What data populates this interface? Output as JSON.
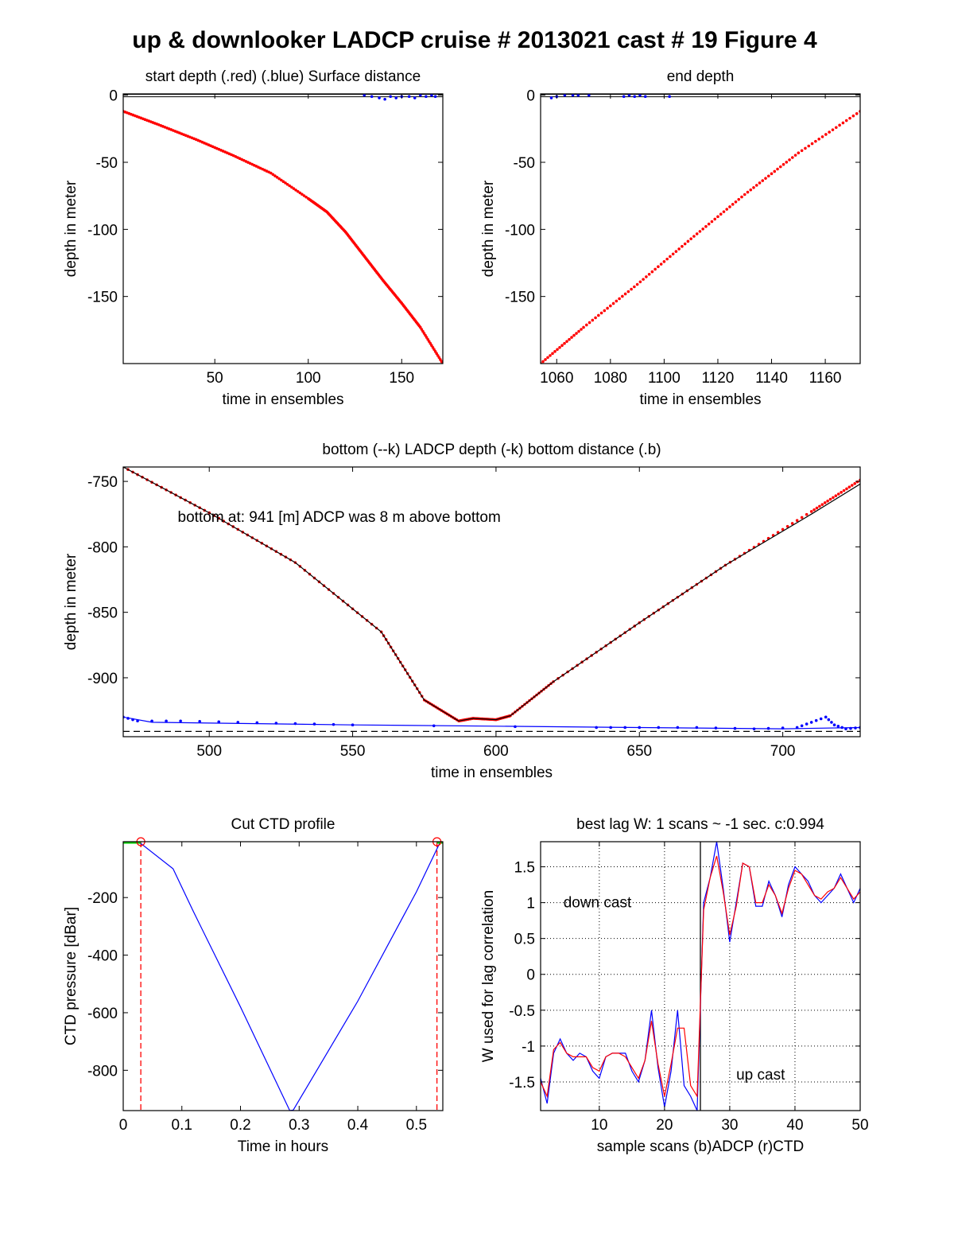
{
  "figure": {
    "title": "up & downlooker LADCP cruise # 2013021 cast # 19    Figure 4"
  },
  "colors": {
    "ladcp_depth_red": "#ff0000",
    "surface_bottom_blue": "#0000ff",
    "reference_black": "#000000",
    "surface_marker_green": "#00cc00"
  },
  "chart_data": [
    {
      "id": "start-depth",
      "type": "scatter",
      "title": "start depth (.red) (.blue) Surface distance",
      "xlabel": "time in ensembles",
      "ylabel": "depth in meter",
      "xlim": [
        1,
        172
      ],
      "ylim": [
        -200,
        1
      ],
      "xticks": [
        50,
        100,
        150
      ],
      "yticks": [
        0,
        -50,
        -100,
        -150
      ],
      "series": [
        {
          "color": "#ff0000",
          "style": "dots",
          "points": [
            [
              1,
              -12
            ],
            [
              20,
              -22
            ],
            [
              40,
              -33
            ],
            [
              60,
              -45
            ],
            [
              80,
              -58
            ],
            [
              100,
              -77
            ],
            [
              110,
              -87
            ],
            [
              120,
              -102
            ],
            [
              130,
              -120
            ],
            [
              140,
              -138
            ],
            [
              150,
              -155
            ],
            [
              160,
              -173
            ],
            [
              172,
              -200
            ]
          ]
        },
        {
          "color": "#0000ff",
          "style": "dots",
          "points": [
            [
              130,
              0
            ],
            [
              134,
              -1
            ],
            [
              138,
              -2
            ],
            [
              141,
              -3
            ],
            [
              144,
              -1
            ],
            [
              147,
              -2
            ],
            [
              150,
              -1
            ],
            [
              154,
              -1
            ],
            [
              157,
              -2
            ],
            [
              160,
              0
            ],
            [
              163,
              -1
            ],
            [
              166,
              0
            ],
            [
              168,
              -1
            ]
          ]
        }
      ],
      "reference_lines": [
        0
      ]
    },
    {
      "id": "end-depth",
      "type": "scatter",
      "title": "end depth",
      "xlabel": "time in ensembles",
      "ylabel": "depth in meter",
      "xlim": [
        1054,
        1173
      ],
      "ylim": [
        -200,
        1
      ],
      "xticks": [
        1060,
        1080,
        1100,
        1120,
        1140,
        1160
      ],
      "yticks": [
        0,
        -50,
        -100,
        -150
      ],
      "series": [
        {
          "color": "#ff0000",
          "style": "dots",
          "points": [
            [
              1054,
              -200
            ],
            [
              1070,
              -173
            ],
            [
              1090,
              -141
            ],
            [
              1110,
              -107
            ],
            [
              1130,
              -74
            ],
            [
              1150,
              -43
            ],
            [
              1173,
              -12
            ]
          ]
        },
        {
          "color": "#0000ff",
          "style": "dots",
          "points": [
            [
              1058,
              -2
            ],
            [
              1060,
              -1
            ],
            [
              1063,
              0
            ],
            [
              1066,
              0
            ],
            [
              1068,
              0
            ],
            [
              1072,
              0
            ],
            [
              1085,
              -1
            ],
            [
              1087,
              0
            ],
            [
              1089,
              -1
            ],
            [
              1091,
              0
            ],
            [
              1093,
              -1
            ],
            [
              1102,
              -1
            ]
          ]
        }
      ],
      "reference_lines": [
        0
      ]
    },
    {
      "id": "bottom",
      "type": "line",
      "title": "bottom (--k) LADCP depth (-k) bottom distance (.b)",
      "xlabel": "time in ensembles",
      "ylabel": "depth in meter",
      "xlim": [
        470,
        727
      ],
      "ylim": [
        -945,
        -739
      ],
      "xticks": [
        500,
        550,
        600,
        650,
        700
      ],
      "yticks": [
        -750,
        -800,
        -850,
        -900
      ],
      "annotation": "bottom at: 941 [m]   ADCP was 8 m above bottom",
      "series": [
        {
          "color": "#ff0000",
          "style": "dots",
          "points": [
            [
              470,
              -739
            ],
            [
              500,
              -774
            ],
            [
              530,
              -812
            ],
            [
              560,
              -865
            ],
            [
              575,
              -917
            ],
            [
              587,
              -933
            ],
            [
              592,
              -931
            ],
            [
              600,
              -932
            ],
            [
              605,
              -929
            ],
            [
              620,
              -903
            ],
            [
              650,
              -858
            ],
            [
              680,
              -814
            ],
            [
              710,
              -773
            ],
            [
              727,
              -749
            ]
          ]
        },
        {
          "color": "#000000",
          "style": "line",
          "points": [
            [
              470,
              -739
            ],
            [
              500,
              -774
            ],
            [
              530,
              -812
            ],
            [
              560,
              -865
            ],
            [
              575,
              -917
            ],
            [
              587,
              -933
            ],
            [
              592,
              -931
            ],
            [
              600,
              -932
            ],
            [
              605,
              -929
            ],
            [
              620,
              -903
            ],
            [
              650,
              -858
            ],
            [
              680,
              -814
            ],
            [
              710,
              -775
            ],
            [
              727,
              -752
            ]
          ]
        },
        {
          "color": "#0000ff",
          "style": "dots",
          "points": [
            [
              470,
              -930
            ],
            [
              475,
              -933
            ],
            [
              490,
              -933
            ],
            [
              510,
              -934
            ],
            [
              530,
              -935
            ],
            [
              550,
              -936
            ],
            [
              635,
              -938
            ],
            [
              650,
              -938
            ],
            [
              670,
              -938
            ],
            [
              690,
              -939
            ],
            [
              705,
              -938
            ],
            [
              710,
              -934
            ],
            [
              715,
              -930
            ],
            [
              718,
              -936
            ],
            [
              722,
              -939
            ],
            [
              727,
              -938
            ]
          ]
        },
        {
          "color": "#0000ff",
          "style": "line",
          "points": [
            [
              470,
              -930
            ],
            [
              480,
              -934
            ],
            [
              550,
              -936
            ],
            [
              600,
              -937
            ],
            [
              650,
              -938
            ],
            [
              700,
              -939
            ],
            [
              727,
              -938
            ]
          ]
        },
        {
          "color": "#000000",
          "style": "dashed",
          "points": [
            [
              470,
              -941
            ],
            [
              727,
              -941
            ]
          ]
        }
      ]
    },
    {
      "id": "cut-ctd",
      "type": "line",
      "title": "Cut CTD profile",
      "xlabel": "Time in hours",
      "ylabel": "CTD pressure [dBar]",
      "xlim": [
        0,
        0.545
      ],
      "ylim": [
        -940,
        -6
      ],
      "xticks": [
        0,
        0.1,
        0.2,
        0.3,
        0.4,
        0.5
      ],
      "yticks": [
        -200,
        -400,
        -600,
        -800
      ],
      "series": [
        {
          "color": "#0000ff",
          "style": "line",
          "points": [
            [
              0,
              -6
            ],
            [
              0.03,
              -12
            ],
            [
              0.085,
              -100
            ],
            [
              0.12,
              -250
            ],
            [
              0.2,
              -580
            ],
            [
              0.284,
              -940
            ],
            [
              0.29,
              -938
            ],
            [
              0.4,
              -560
            ],
            [
              0.5,
              -180
            ],
            [
              0.54,
              -10
            ],
            [
              0.545,
              -6
            ]
          ]
        },
        {
          "color": "#00cc00",
          "style": "thick",
          "points": [
            [
              0,
              -6
            ],
            [
              0.03,
              -6
            ]
          ]
        },
        {
          "color": "#00cc00",
          "style": "thick",
          "points": [
            [
              0.535,
              -6
            ],
            [
              0.545,
              -6
            ]
          ]
        }
      ],
      "cut_lines": [
        0.03,
        0.535
      ],
      "cut_markers": [
        [
          0.03,
          -6
        ],
        [
          0.535,
          -6
        ]
      ]
    },
    {
      "id": "best-lag",
      "type": "line",
      "title": "best lag W: 1 scans ~ -1 sec.  c:0.994",
      "xlabel": "sample scans (b)ADCP (r)CTD",
      "ylabel": "W used for lag correlation",
      "xlim": [
        1,
        50
      ],
      "ylim": [
        -1.9,
        1.85
      ],
      "xticks": [
        10,
        20,
        30,
        40,
        50
      ],
      "yticks": [
        1.5,
        1,
        0.5,
        0,
        -0.5,
        -1,
        -1.5
      ],
      "grid": true,
      "vline": 25.5,
      "annotations": [
        {
          "text": "down cast",
          "x": 4.5,
          "y": 1.0
        },
        {
          "text": "up cast",
          "x": 31,
          "y": -1.4
        }
      ],
      "series": [
        {
          "name": "(b)ADCP",
          "color": "#0000ff",
          "x": [
            1,
            2,
            3,
            4,
            5,
            6,
            7,
            8,
            9,
            10,
            11,
            12,
            13,
            14,
            15,
            16,
            17,
            18,
            19,
            20,
            21,
            22,
            23,
            24,
            25,
            26,
            27,
            28,
            29,
            30,
            31,
            32,
            33,
            34,
            35,
            36,
            37,
            38,
            39,
            40,
            41,
            42,
            43,
            44,
            45,
            46,
            47,
            48,
            49,
            50
          ],
          "values": [
            -1.45,
            -1.8,
            -1.1,
            -0.9,
            -1.1,
            -1.2,
            -1.1,
            -1.15,
            -1.35,
            -1.45,
            -1.15,
            -1.1,
            -1.1,
            -1.1,
            -1.35,
            -1.5,
            -1.2,
            -0.5,
            -1.3,
            -1.85,
            -1.35,
            -0.5,
            -1.55,
            -1.7,
            -1.9,
            1.0,
            1.35,
            1.85,
            1.2,
            0.45,
            1.0,
            1.55,
            1.5,
            0.95,
            0.95,
            1.3,
            1.1,
            0.8,
            1.25,
            1.5,
            1.4,
            1.3,
            1.1,
            1.0,
            1.1,
            1.2,
            1.4,
            1.2,
            1.0,
            1.2
          ]
        },
        {
          "name": "(r)CTD",
          "color": "#ff0000",
          "x": [
            1,
            2,
            3,
            4,
            5,
            6,
            7,
            8,
            9,
            10,
            11,
            12,
            13,
            14,
            15,
            16,
            17,
            18,
            19,
            20,
            21,
            22,
            23,
            24,
            25,
            26,
            27,
            28,
            29,
            30,
            31,
            32,
            33,
            34,
            35,
            36,
            37,
            38,
            39,
            40,
            41,
            42,
            43,
            44,
            45,
            46,
            47,
            48,
            49,
            50
          ],
          "values": [
            -1.5,
            -1.7,
            -1.05,
            -0.95,
            -1.1,
            -1.15,
            -1.15,
            -1.15,
            -1.3,
            -1.35,
            -1.15,
            -1.1,
            -1.1,
            -1.15,
            -1.3,
            -1.45,
            -1.2,
            -0.65,
            -1.25,
            -1.7,
            -1.25,
            -0.75,
            -0.75,
            -1.55,
            -1.7,
            0.9,
            1.35,
            1.65,
            1.15,
            0.55,
            0.95,
            1.55,
            1.5,
            1.0,
            1.0,
            1.25,
            1.1,
            0.85,
            1.2,
            1.45,
            1.4,
            1.25,
            1.1,
            1.05,
            1.15,
            1.2,
            1.35,
            1.2,
            1.05,
            1.15
          ]
        }
      ]
    }
  ]
}
